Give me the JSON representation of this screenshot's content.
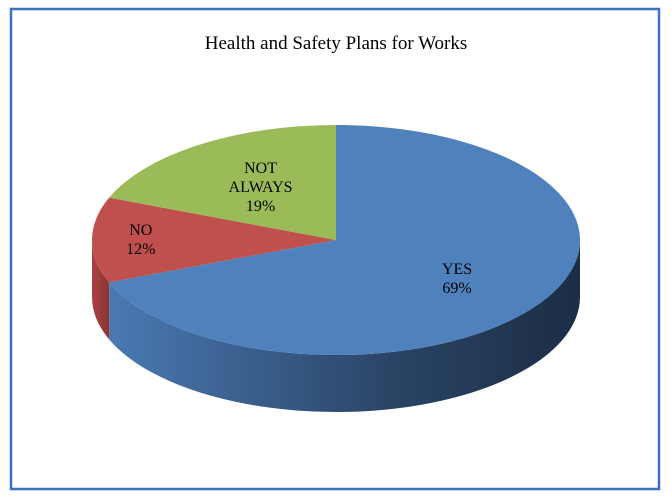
{
  "chart_data": {
    "type": "pie",
    "title": "Health and Safety Plans for Works",
    "categories": [
      "YES",
      "NO",
      "NOT ALWAYS"
    ],
    "values": [
      69,
      12,
      19
    ],
    "value_labels": [
      "69%",
      "12%",
      "19%"
    ],
    "colors": [
      "#4f81bd",
      "#c0504d",
      "#9bbb59"
    ]
  }
}
